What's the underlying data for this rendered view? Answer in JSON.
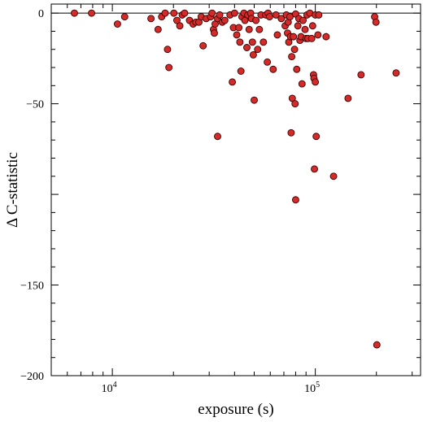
{
  "chart_data": {
    "type": "scatter",
    "xlabel": "exposure (s)",
    "ylabel": "Δ C-statistic",
    "xscale": "log",
    "xlim": [
      5000,
      330000
    ],
    "ylim": [
      -200,
      5
    ],
    "x_ticks": [
      {
        "value": 10000,
        "base": "10",
        "exp": "4"
      },
      {
        "value": 100000,
        "base": "10",
        "exp": "5"
      }
    ],
    "y_ticks": [
      {
        "value": 0,
        "label": "0"
      },
      {
        "value": -50,
        "label": "−50"
      },
      {
        "value": -150,
        "label": "−150"
      },
      {
        "value": -200,
        "label": "−200"
      }
    ],
    "zero_line": true,
    "grid": false,
    "marker_color": "#d42a2a",
    "marker_edge": "#3a0000",
    "points": [
      [
        6500,
        0
      ],
      [
        7900,
        0
      ],
      [
        10600,
        -6
      ],
      [
        11500,
        -2
      ],
      [
        15500,
        -3
      ],
      [
        16800,
        -9
      ],
      [
        17500,
        -2
      ],
      [
        18200,
        0
      ],
      [
        18700,
        -20
      ],
      [
        19000,
        -30
      ],
      [
        20100,
        0
      ],
      [
        20800,
        -4
      ],
      [
        21500,
        -7
      ],
      [
        22100,
        -1
      ],
      [
        22700,
        0
      ],
      [
        24000,
        -4
      ],
      [
        25000,
        -6
      ],
      [
        25800,
        -5
      ],
      [
        26700,
        -5
      ],
      [
        27400,
        -2
      ],
      [
        28000,
        -18
      ],
      [
        29000,
        -3
      ],
      [
        30500,
        -2
      ],
      [
        31000,
        0
      ],
      [
        31500,
        -9
      ],
      [
        31800,
        -11
      ],
      [
        32100,
        -6
      ],
      [
        33000,
        -3
      ],
      [
        33000,
        -68
      ],
      [
        33800,
        -1
      ],
      [
        34800,
        -5
      ],
      [
        35800,
        -4
      ],
      [
        38000,
        -1
      ],
      [
        39000,
        -38
      ],
      [
        39500,
        -8
      ],
      [
        40000,
        0
      ],
      [
        41000,
        -12
      ],
      [
        42000,
        -8
      ],
      [
        42500,
        -16
      ],
      [
        43000,
        -32
      ],
      [
        43500,
        -2
      ],
      [
        44500,
        0
      ],
      [
        45000,
        -4
      ],
      [
        46000,
        -19
      ],
      [
        46500,
        -1
      ],
      [
        47200,
        -9
      ],
      [
        48000,
        0
      ],
      [
        48500,
        -3
      ],
      [
        49000,
        -16
      ],
      [
        49500,
        -23
      ],
      [
        50000,
        -48
      ],
      [
        51000,
        -4
      ],
      [
        52000,
        -20
      ],
      [
        53000,
        -9
      ],
      [
        54000,
        -1
      ],
      [
        55500,
        -16
      ],
      [
        57000,
        -1
      ],
      [
        58000,
        -27
      ],
      [
        58500,
        0
      ],
      [
        59500,
        -2
      ],
      [
        62000,
        -31
      ],
      [
        64000,
        -1
      ],
      [
        65000,
        -12
      ],
      [
        68000,
        -3
      ],
      [
        71000,
        -7
      ],
      [
        72000,
        -1
      ],
      [
        73000,
        -11
      ],
      [
        73500,
        -5
      ],
      [
        74000,
        -16
      ],
      [
        75000,
        -2
      ],
      [
        75500,
        -13
      ],
      [
        76000,
        -66
      ],
      [
        76500,
        -24
      ],
      [
        77000,
        -47
      ],
      [
        78000,
        -13
      ],
      [
        79000,
        -20
      ],
      [
        79500,
        -50
      ],
      [
        80000,
        -0.5
      ],
      [
        80000,
        -103
      ],
      [
        81000,
        -31
      ],
      [
        82000,
        -7
      ],
      [
        83000,
        -3
      ],
      [
        84000,
        -15
      ],
      [
        85000,
        -13
      ],
      [
        86000,
        -39
      ],
      [
        87000,
        -4
      ],
      [
        89000,
        -9
      ],
      [
        90000,
        -14
      ],
      [
        91000,
        -1
      ],
      [
        92000,
        -14
      ],
      [
        94000,
        0
      ],
      [
        96000,
        -14
      ],
      [
        97000,
        -7
      ],
      [
        98000,
        -34
      ],
      [
        98500,
        -36
      ],
      [
        99000,
        -86
      ],
      [
        100000,
        -1
      ],
      [
        100000,
        -38
      ],
      [
        101000,
        -68
      ],
      [
        103000,
        -12
      ],
      [
        104000,
        -1
      ],
      [
        113000,
        -13
      ],
      [
        123000,
        -90
      ],
      [
        145000,
        -47
      ],
      [
        168000,
        -34
      ],
      [
        196000,
        -2
      ],
      [
        199000,
        -5
      ],
      [
        201000,
        -183
      ],
      [
        250000,
        -33
      ]
    ]
  }
}
